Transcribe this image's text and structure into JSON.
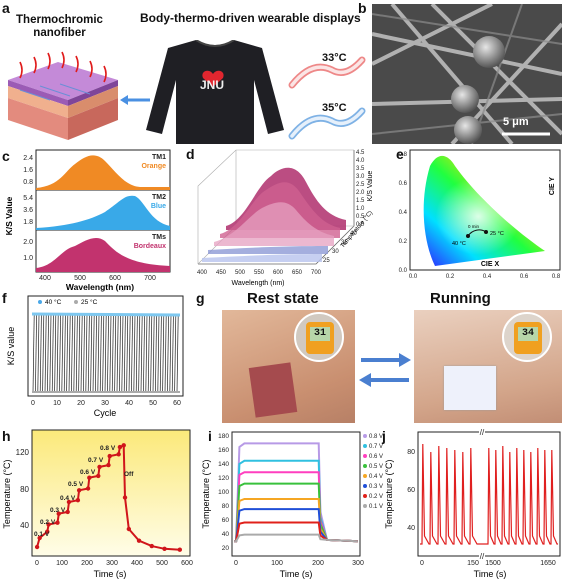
{
  "panels": {
    "a": {
      "letter": "a",
      "left_title": "Thermochromic nanofiber",
      "right_title": "Body-thermo-driven wearable displays",
      "shirt_text": "JNU",
      "temp_hot": "33°C",
      "temp_warm": "35°C"
    },
    "b": {
      "letter": "b",
      "scale_label": "5 μm"
    },
    "c": {
      "letter": "c",
      "ylabel": "K/S Value",
      "xlabel": "Wavelength (nm)",
      "xticks": [
        "400",
        "500",
        "600",
        "700"
      ],
      "subplots": [
        {
          "name": "TM1",
          "color_name": "Orange",
          "ticks": [
            "2.4",
            "1.6",
            "0.8"
          ],
          "fill": "#f08a24"
        },
        {
          "name": "TM2",
          "color_name": "Blue",
          "ticks": [
            "5.4",
            "3.6",
            "1.8"
          ],
          "fill": "#39a9e8"
        },
        {
          "name": "TMs",
          "color_name": "Bordeaux",
          "ticks": [
            "2.0",
            "1.0"
          ],
          "fill": "#c2336e"
        }
      ]
    },
    "d": {
      "letter": "d",
      "xlabel": "Wavelength (nm)",
      "zlabel": "K/S Value",
      "ylabel": "Temperature (°C)",
      "xticks": [
        "400",
        "450",
        "500",
        "550",
        "600",
        "650",
        "700"
      ],
      "zticks": [
        "4.5",
        "4.0",
        "3.5",
        "3.0",
        "2.5",
        "2.0",
        "1.5",
        "1.0",
        "0.5",
        "0.0"
      ],
      "yticks": [
        "25",
        "30",
        "35",
        "40"
      ]
    },
    "e": {
      "letter": "e",
      "xlabel": "CIE X",
      "ylabel": "CIE Y",
      "yticks": [
        "0.8",
        "0.6",
        "0.4",
        "0.2",
        "0.0"
      ],
      "xticks": [
        "0.0",
        "0.2",
        "0.4",
        "0.6",
        "0.8"
      ],
      "point_low": "40 °C",
      "point_high": "25 °C",
      "mid_label": "0 min"
    },
    "f": {
      "letter": "f",
      "ylabel": "K/S value",
      "xlabel": "Cycle",
      "legend": [
        "40 °C",
        "25 °C"
      ],
      "xticks": [
        "0",
        "10",
        "20",
        "30",
        "40",
        "50",
        "60"
      ]
    },
    "g": {
      "letter": "g",
      "rest_label": "Rest state",
      "run_label": "Running",
      "rest_reading": "31",
      "run_reading": "34"
    },
    "h": {
      "letter": "h",
      "ylabel": "Temperature (°C)",
      "xlabel": "Time (s)",
      "yticks": [
        "120",
        "80",
        "40"
      ],
      "xticks": [
        "0",
        "100",
        "200",
        "300",
        "400",
        "500",
        "600"
      ],
      "voltages": [
        "0.1 V",
        "0.2 V",
        "0.3 V",
        "0.4 V",
        "0.5 V",
        "0.6 V",
        "0.7 V",
        "0.8 V"
      ],
      "off_label": "Off"
    },
    "i": {
      "letter": "i",
      "ylabel": "Temperature (°C)",
      "xlabel": "Time (s)",
      "yticks": [
        "180",
        "160",
        "140",
        "120",
        "100",
        "80",
        "60",
        "40",
        "20"
      ],
      "xticks": [
        "0",
        "100",
        "200",
        "300"
      ],
      "legend": [
        "0.8 V",
        "0.7 V",
        "0.6 V",
        "0.5 V",
        "0.4 V",
        "0.3 V",
        "0.2 V",
        "0.1 V"
      ],
      "colors": [
        "#b79ae6",
        "#30c0e0",
        "#ff3fbf",
        "#39c13c",
        "#f5a623",
        "#1f4fd8",
        "#e0201a",
        "#aaaaaa"
      ]
    },
    "j": {
      "letter": "j",
      "ylabel": "Temperature (°C)",
      "xlabel": "Time (s)",
      "yticks": [
        "80",
        "60",
        "40"
      ],
      "xticks": [
        "0",
        "150",
        "1500",
        "1650"
      ]
    }
  },
  "chart_data": [
    {
      "panel": "h",
      "type": "line",
      "xlabel": "Time (s)",
      "ylabel": "Temperature (°C)",
      "xlim": [
        -20,
        600
      ],
      "ylim": [
        25,
        165
      ],
      "x": [
        0,
        10,
        40,
        45,
        80,
        85,
        120,
        125,
        160,
        165,
        200,
        205,
        240,
        245,
        280,
        285,
        320,
        325,
        340,
        345,
        360,
        400,
        450,
        500,
        560
      ],
      "y": [
        35,
        45,
        52,
        60,
        62,
        72,
        74,
        85,
        87,
        98,
        100,
        112,
        114,
        124,
        126,
        136,
        138,
        146,
        148,
        90,
        55,
        42,
        36,
        33,
        32
      ]
    },
    {
      "panel": "i",
      "type": "line",
      "xlabel": "Time (s)",
      "ylabel": "Temperature (°C)",
      "xlim": [
        -10,
        300
      ],
      "ylim": [
        10,
        195
      ],
      "series": [
        {
          "name": "0.8 V",
          "plateau": 178
        },
        {
          "name": "0.7 V",
          "plateau": 152
        },
        {
          "name": "0.6 V",
          "plateau": 135
        },
        {
          "name": "0.5 V",
          "plateau": 118
        },
        {
          "name": "0.4 V",
          "plateau": 95
        },
        {
          "name": "0.3 V",
          "plateau": 80
        },
        {
          "name": "0.2 V",
          "plateau": 60
        },
        {
          "name": "0.1 V",
          "plateau": 42
        }
      ],
      "on_time": [
        0,
        200
      ],
      "baseline": 32
    },
    {
      "panel": "f",
      "type": "line",
      "xlabel": "Cycle",
      "ylabel": "K/S value",
      "series": [
        {
          "name": "40 °C",
          "value": 3.55
        },
        {
          "name": "25 °C",
          "value": 0.3
        }
      ],
      "cycles": 60
    },
    {
      "panel": "j",
      "type": "line",
      "xlabel": "Time (s)",
      "ylabel": "Temperature (°C)",
      "ylim": [
        22,
        84
      ],
      "peaks_left": [
        78,
        74,
        77,
        76,
        75,
        74,
        76
      ],
      "peaks_right": [
        76,
        75,
        77,
        74,
        76,
        75,
        74,
        76,
        75,
        75
      ],
      "baseline": 28
    }
  ]
}
